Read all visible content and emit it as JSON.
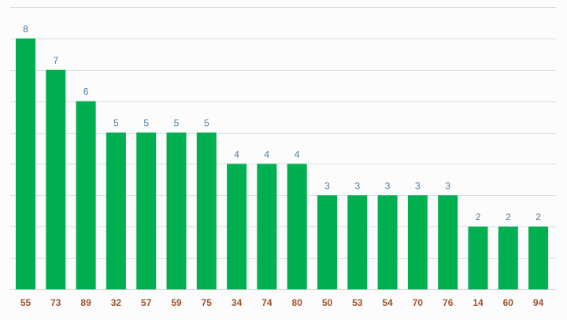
{
  "chart_data": {
    "type": "bar",
    "categories": [
      "55",
      "73",
      "89",
      "32",
      "57",
      "59",
      "75",
      "34",
      "74",
      "80",
      "50",
      "53",
      "54",
      "70",
      "76",
      "14",
      "60",
      "94"
    ],
    "values": [
      8,
      7,
      6,
      5,
      5,
      5,
      5,
      4,
      4,
      4,
      3,
      3,
      3,
      3,
      3,
      2,
      2,
      2
    ],
    "title": "",
    "xlabel": "",
    "ylabel": "",
    "ylim": [
      0,
      9
    ],
    "grid": true,
    "legend": "none",
    "colors": {
      "bar": "#00b050",
      "data_label": "#4a7aa0",
      "tick_label": "#a0522d",
      "grid": "#dcdcdc"
    }
  }
}
